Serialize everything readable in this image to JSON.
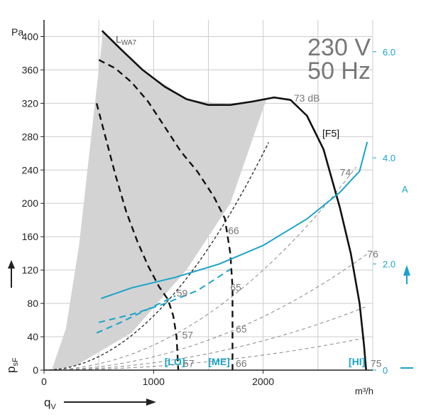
{
  "chart_data": {
    "type": "line",
    "title_voltage": "230 V",
    "title_frequency": "50 Hz",
    "y_unit": "Pa",
    "x_unit": "m³/h",
    "y2_unit": "A",
    "ylabel_main": "p",
    "ylabel_sub": "sF",
    "xlabel_main": "q",
    "xlabel_sub": "V",
    "sound_label_main": "L",
    "sound_label_sub": "WA7",
    "xlim": [
      0,
      3000
    ],
    "ylim": [
      0,
      420
    ],
    "y2lim": [
      0,
      6.6
    ],
    "x_ticks": [
      0,
      1000,
      2000
    ],
    "y_ticks": [
      0,
      40,
      80,
      120,
      160,
      200,
      240,
      280,
      320,
      360,
      400
    ],
    "y2_ticks": [
      {
        "value": 0,
        "label": "0"
      },
      {
        "value": 2,
        "label": "2.0"
      },
      {
        "value": 4,
        "label": "4.0"
      },
      {
        "value": 6,
        "label": "6.0"
      }
    ],
    "grid": true,
    "colors": {
      "pressure": "#111111",
      "current": "#1aa3c8",
      "operating_range": "#d3d3d3",
      "system_lines": "#888888",
      "grid": "#cccccc",
      "text_gray": "#777777"
    },
    "pressure_curves": [
      {
        "name": "[F5]",
        "style": "solid",
        "points": [
          [
            530,
            407
          ],
          [
            700,
            385
          ],
          [
            900,
            360
          ],
          [
            1100,
            340
          ],
          [
            1300,
            325
          ],
          [
            1500,
            318
          ],
          [
            1700,
            318
          ],
          [
            1900,
            322
          ],
          [
            2100,
            327
          ],
          [
            2250,
            324
          ],
          [
            2400,
            305
          ],
          [
            2550,
            265
          ],
          [
            2700,
            195
          ],
          [
            2800,
            140
          ],
          [
            2880,
            80
          ],
          [
            2920,
            30
          ],
          [
            2940,
            0
          ]
        ]
      },
      {
        "name": "[HI]",
        "style": "dashed",
        "points": [
          [
            500,
            372
          ],
          [
            650,
            362
          ],
          [
            800,
            345
          ],
          [
            950,
            322
          ],
          [
            1100,
            292
          ],
          [
            1250,
            262
          ],
          [
            1400,
            238
          ],
          [
            1550,
            208
          ],
          [
            1650,
            182
          ],
          [
            1700,
            140
          ],
          [
            1720,
            100
          ],
          [
            1720,
            0
          ]
        ]
      },
      {
        "name": "[ME]",
        "style": "dashed",
        "points": [
          [
            480,
            320
          ],
          [
            560,
            280
          ],
          [
            650,
            235
          ],
          [
            750,
            190
          ],
          [
            850,
            155
          ],
          [
            950,
            125
          ],
          [
            1050,
            100
          ],
          [
            1130,
            85
          ],
          [
            1180,
            65
          ],
          [
            1210,
            40
          ],
          [
            1225,
            0
          ]
        ]
      }
    ],
    "operating_range": [
      [
        70,
        0
      ],
      [
        200,
        50
      ],
      [
        320,
        150
      ],
      [
        430,
        280
      ],
      [
        530,
        395
      ],
      [
        530,
        407
      ],
      [
        900,
        360
      ],
      [
        1300,
        325
      ],
      [
        1700,
        318
      ],
      [
        2030,
        325
      ],
      [
        1700,
        200
      ],
      [
        1300,
        120
      ],
      [
        800,
        45
      ],
      [
        300,
        6
      ],
      [
        70,
        0
      ]
    ],
    "current_curves": [
      {
        "name": "F5",
        "points": [
          [
            520,
            1.35
          ],
          [
            800,
            1.55
          ],
          [
            1200,
            1.75
          ],
          [
            1600,
            2.0
          ],
          [
            2000,
            2.35
          ],
          [
            2400,
            2.85
          ],
          [
            2700,
            3.35
          ],
          [
            2880,
            3.75
          ],
          [
            2950,
            4.3
          ]
        ]
      },
      {
        "name": "ME",
        "points": [
          [
            500,
            0.9
          ],
          [
            800,
            1.05
          ],
          [
            1100,
            1.25
          ],
          [
            1400,
            1.5
          ],
          [
            1700,
            1.9
          ]
        ]
      },
      {
        "name": "LO",
        "points": [
          [
            480,
            0.7
          ],
          [
            700,
            0.9
          ],
          [
            950,
            1.15
          ],
          [
            1200,
            1.4
          ]
        ]
      }
    ],
    "system_curves": [
      {
        "k": 6.5e-05,
        "x_end": 2050,
        "style": "dashed-black"
      },
      {
        "k": 3e-05,
        "x_end": 2850,
        "style": "dashed-gray"
      },
      {
        "k": 1.6e-05,
        "x_end": 2950,
        "style": "dashed-gray"
      },
      {
        "k": 8.8e-06,
        "x_end": 2950,
        "style": "dashed-gray"
      },
      {
        "k": 4.5e-06,
        "x_end": 2950,
        "style": "dashed-gray"
      }
    ],
    "annotations": [
      {
        "text": "73 dB",
        "x": 2280,
        "y": 322,
        "color": "gray"
      },
      {
        "text": "[F5]",
        "x": 2540,
        "y": 280,
        "color": "black"
      },
      {
        "text": "74",
        "x": 2700,
        "y": 233,
        "color": "gray"
      },
      {
        "text": "76",
        "x": 2950,
        "y": 135,
        "color": "gray"
      },
      {
        "text": "66",
        "x": 1680,
        "y": 163,
        "color": "gray"
      },
      {
        "text": "65",
        "x": 1700,
        "y": 95,
        "color": "gray"
      },
      {
        "text": "65",
        "x": 1750,
        "y": 45,
        "color": "gray"
      },
      {
        "text": "59",
        "x": 1210,
        "y": 88,
        "color": "gray"
      },
      {
        "text": "57",
        "x": 1260,
        "y": 38,
        "color": "gray"
      },
      {
        "text": "57",
        "x": 1270,
        "y": 4,
        "color": "gray"
      },
      {
        "text": "66",
        "x": 1750,
        "y": 4,
        "color": "gray"
      },
      {
        "text": "75",
        "x": 2980,
        "y": 4,
        "color": "gray"
      },
      {
        "text": "[LO]",
        "x": 1100,
        "y": 6,
        "color": "blue"
      },
      {
        "text": "[ME]",
        "x": 1500,
        "y": 6,
        "color": "blue"
      },
      {
        "text": "[HI]",
        "x": 2780,
        "y": 6,
        "color": "blue"
      }
    ]
  }
}
